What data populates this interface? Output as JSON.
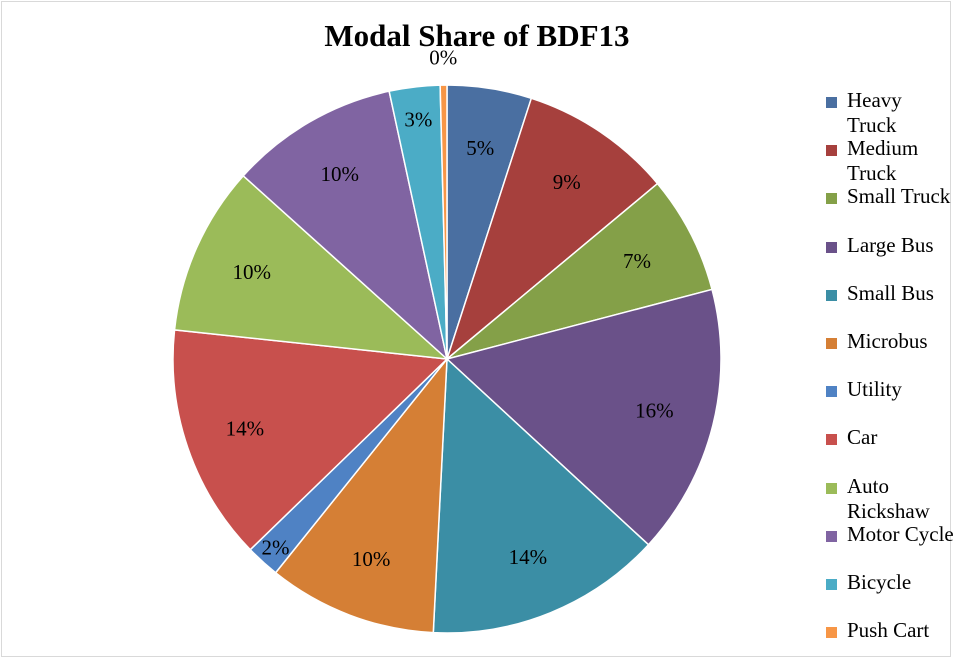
{
  "chart_data": {
    "type": "pie",
    "title": "Modal Share of BDF13",
    "start_angle_deg": 0,
    "direction": "clockwise",
    "legend_position": "right",
    "slices": [
      {
        "name": "Heavy Truck",
        "value": 5,
        "label": "5%",
        "color": "#4a6fa1"
      },
      {
        "name": "Medium Truck",
        "value": 9,
        "label": "9%",
        "color": "#a6403d"
      },
      {
        "name": "Small Truck",
        "value": 7,
        "label": "7%",
        "color": "#84a048"
      },
      {
        "name": "Large Bus",
        "value": 16,
        "label": "16%",
        "color": "#6a5189"
      },
      {
        "name": "Small Bus",
        "value": 14,
        "label": "14%",
        "color": "#3b8ea5"
      },
      {
        "name": "Microbus",
        "value": 10,
        "label": "10%",
        "color": "#d57f35"
      },
      {
        "name": "Utility",
        "value": 2,
        "label": "2%",
        "color": "#4f82c4"
      },
      {
        "name": "Car",
        "value": 14,
        "label": "14%",
        "color": "#c8504d"
      },
      {
        "name": "Auto Rickshaw",
        "value": 10,
        "label": "10%",
        "color": "#9bbb59"
      },
      {
        "name": "Motor Cycle",
        "value": 10,
        "label": "10%",
        "color": "#8064a2"
      },
      {
        "name": "Bicycle",
        "value": 3,
        "label": "3%",
        "color": "#4bacc6"
      },
      {
        "name": "Push Cart",
        "value": 0.4,
        "label": "0%",
        "color": "#f79646"
      }
    ]
  }
}
